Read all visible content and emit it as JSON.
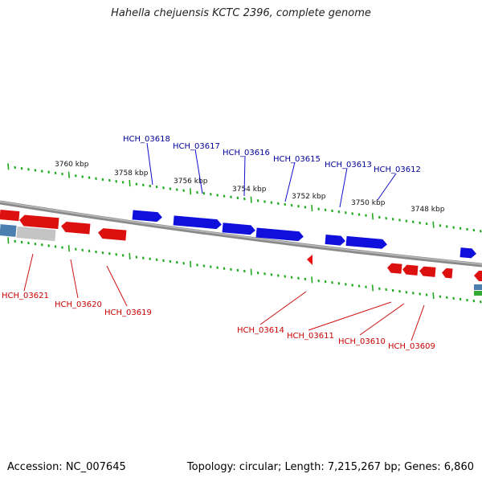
{
  "title": "Hahella chejuensis KCTC 2396, complete genome",
  "footer": {
    "accession": "Accession: NC_007645",
    "stats": "Topology: circular; Length: 7,215,267 bp; Genes: 6,860"
  },
  "colors": {
    "plus_strand": "#1010dd",
    "minus_strand": "#dd1010",
    "tick": "#22aa22",
    "backbone": "#888888",
    "plus_label": "#000099",
    "minus_label": "#cc0000"
  },
  "kbp_labels": [
    "3760 kbp",
    "3758 kbp",
    "3756 kbp",
    "3754 kbp",
    "3752 kbp",
    "3750 kbp",
    "3748 kbp"
  ],
  "plus_genes": [
    "HCH_03618",
    "HCH_03617",
    "HCH_03616",
    "HCH_03615",
    "HCH_03613",
    "HCH_03612"
  ],
  "minus_genes": [
    "HCH_03621",
    "HCH_03620",
    "HCH_03619",
    "HCH_03614",
    "HCH_03611",
    "HCH_03610",
    "HCH_03609"
  ]
}
